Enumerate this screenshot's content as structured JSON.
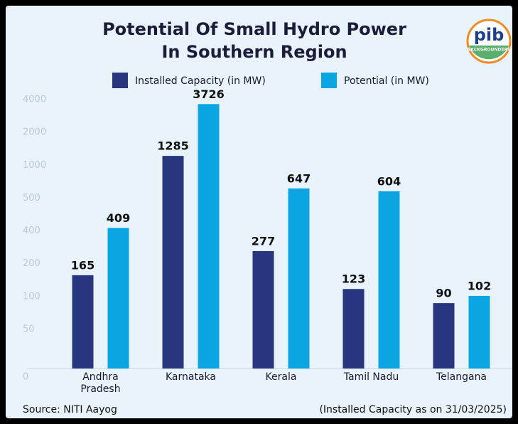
{
  "chart_data": {
    "type": "bar",
    "title": [
      "Potential Of Small Hydro Power",
      "In Southern Region"
    ],
    "categories": [
      "Andhra Pradesh",
      "Karnataka",
      "Kerala",
      "Tamil Nadu",
      "Telangana"
    ],
    "series": [
      {
        "name": "Installed Capacity (in MW)",
        "color": "#27367f",
        "values": [
          165,
          1285,
          277,
          123,
          90
        ]
      },
      {
        "name": "Potential (in MW)",
        "color": "#0ba5e4",
        "values": [
          409,
          3726,
          647,
          604,
          102
        ]
      }
    ],
    "ylim": [
      0,
      4000
    ],
    "yticks": [
      0,
      50,
      100,
      200,
      400,
      500,
      1000,
      2000,
      4000
    ],
    "source": "Source: NITI Aayog",
    "note": "(Installed Capacity as on 31/03/2025)"
  },
  "logo": {
    "name": "pib",
    "sub": "BACKGROUNDERS"
  }
}
